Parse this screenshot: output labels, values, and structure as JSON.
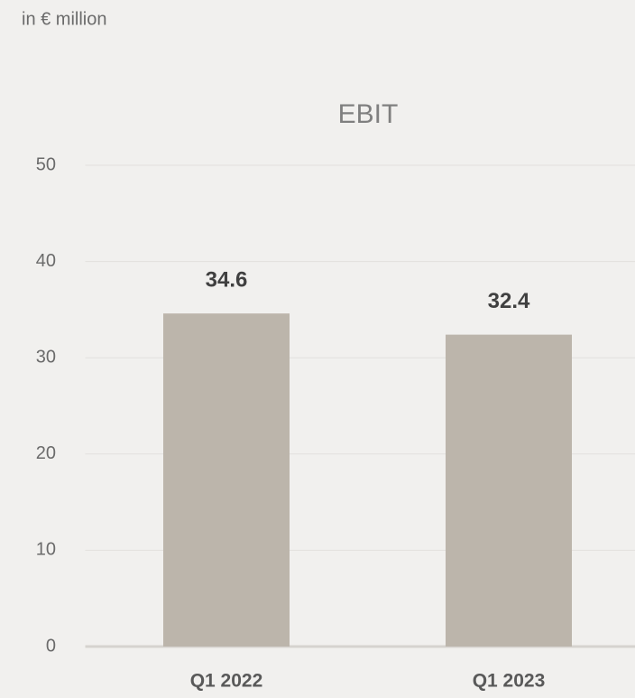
{
  "chart_data": {
    "type": "bar",
    "subtitle": "in € million",
    "title": "EBIT",
    "categories": [
      "Q1 2022",
      "Q1 2023"
    ],
    "values": [
      34.6,
      32.4
    ],
    "color": "#bcb5ab",
    "ylim": [
      0,
      50
    ],
    "yticks": [
      0,
      10,
      20,
      30,
      40,
      50
    ],
    "grid": true
  }
}
